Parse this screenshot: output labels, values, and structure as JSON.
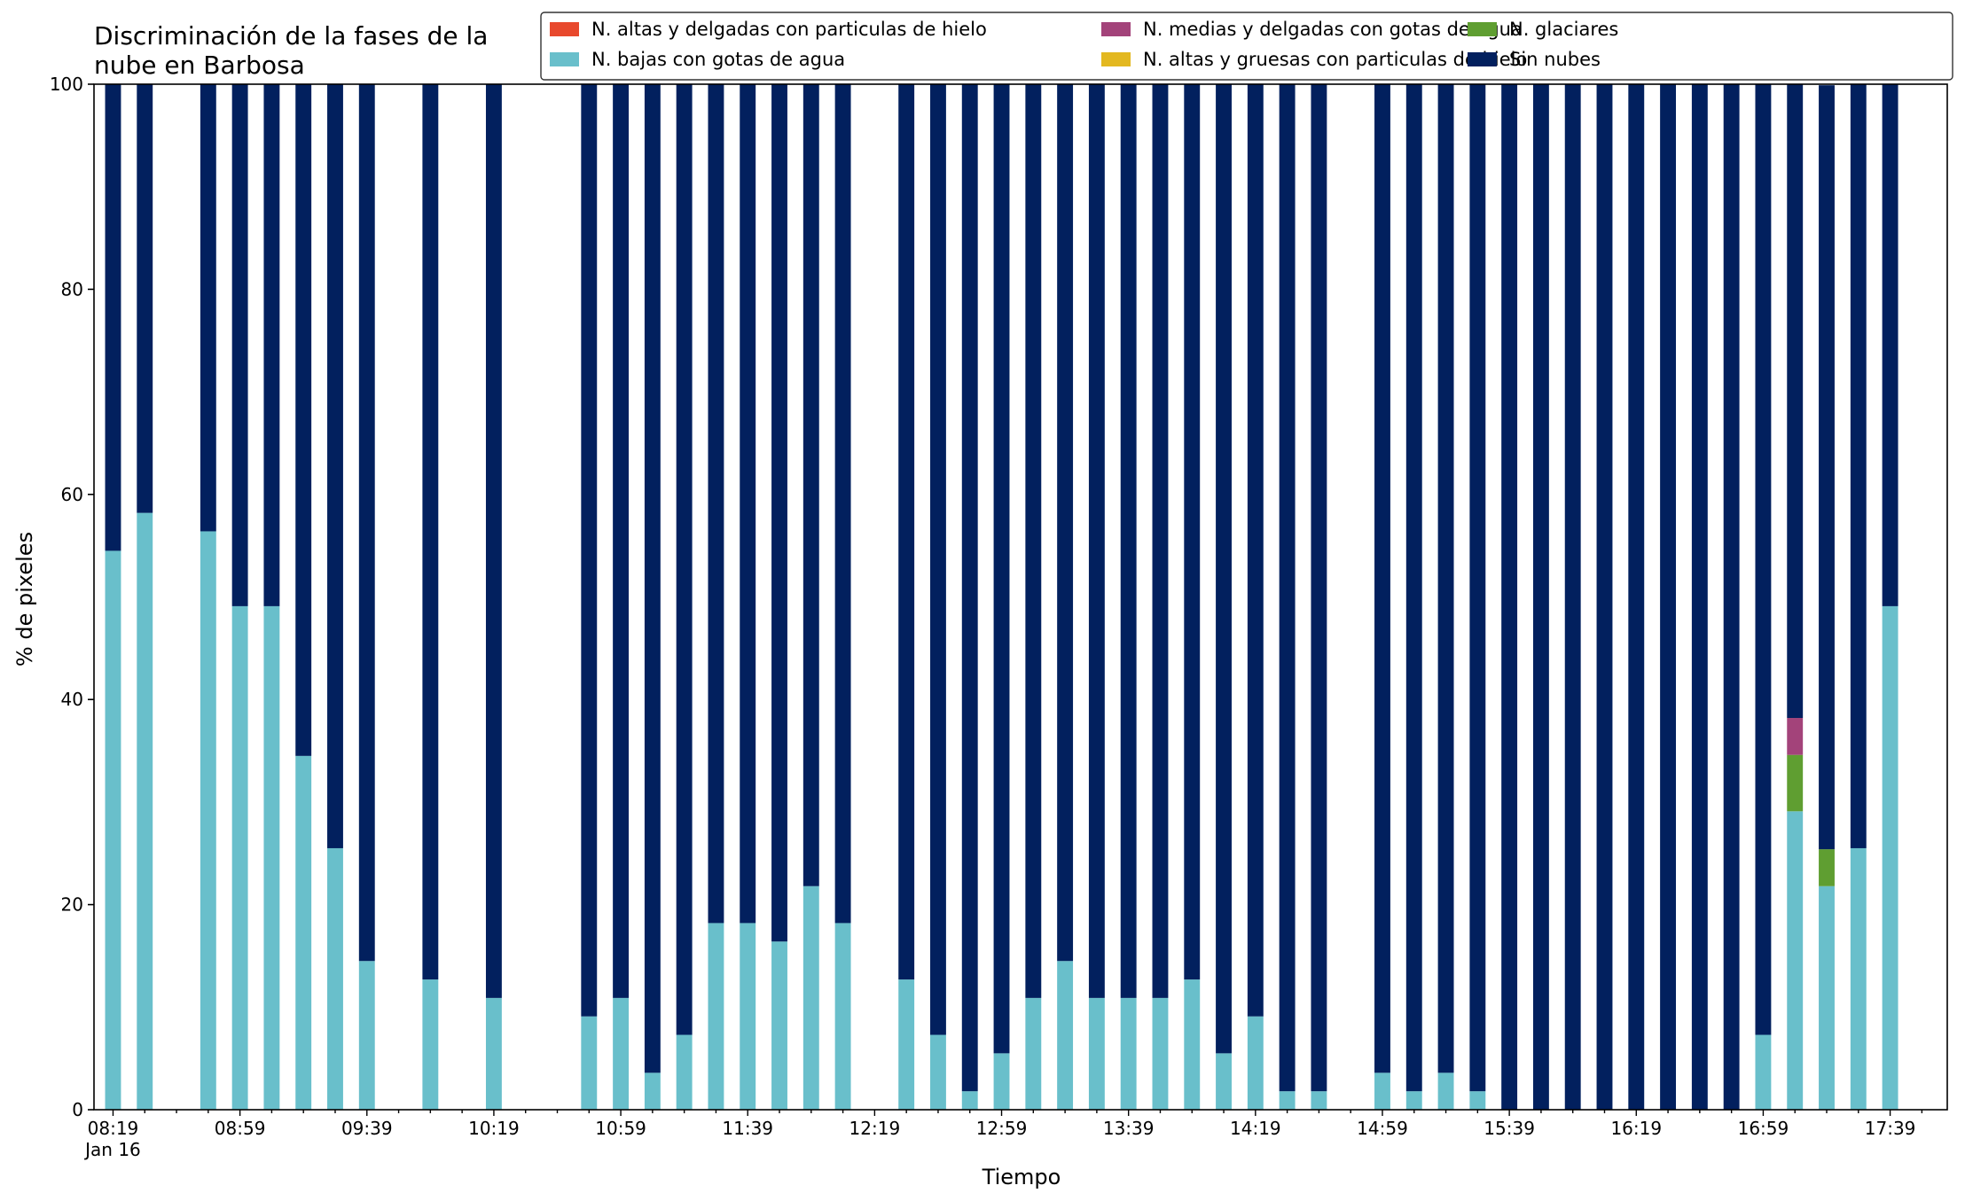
{
  "chart_data": {
    "type": "bar",
    "stacked": true,
    "title_lines": [
      "Discriminación de la fases de la",
      "nube en Barbosa"
    ],
    "xlabel": "Tiempo",
    "ylabel": "% de pixeles",
    "ylim": [
      0,
      100
    ],
    "yticks": [
      0,
      20,
      40,
      60,
      80,
      100
    ],
    "xlim": [
      "08:13",
      "17:57"
    ],
    "date_label": "Jan 16",
    "xtick_labels": [
      "08:19",
      "08:59",
      "09:39",
      "10:19",
      "10:59",
      "11:39",
      "12:19",
      "12:59",
      "13:39",
      "14:19",
      "14:59",
      "15:39",
      "16:19",
      "16:59",
      "17:39"
    ],
    "grid": false,
    "legend_position": "top-right",
    "categories": [
      "08:19",
      "08:29",
      "08:49",
      "08:59",
      "09:09",
      "09:19",
      "09:29",
      "09:39",
      "09:59",
      "10:19",
      "10:49",
      "10:59",
      "11:09",
      "11:19",
      "11:29",
      "11:39",
      "11:49",
      "11:59",
      "12:09",
      "12:29",
      "12:39",
      "12:49",
      "12:59",
      "13:09",
      "13:19",
      "13:29",
      "13:39",
      "13:49",
      "13:59",
      "14:09",
      "14:19",
      "14:29",
      "14:39",
      "14:59",
      "15:09",
      "15:19",
      "15:29",
      "15:39",
      "15:49",
      "15:59",
      "16:09",
      "16:19",
      "16:29",
      "16:39",
      "16:49",
      "16:59",
      "17:09",
      "17:19",
      "17:29",
      "17:39"
    ],
    "series": [
      {
        "name": "N. altas y delgadas con particulas de hielo",
        "color": "#e8492d",
        "values": [
          0,
          0,
          0,
          0,
          0,
          0,
          0,
          0,
          0,
          0,
          0,
          0,
          0,
          0,
          0,
          0,
          0,
          0,
          0,
          0,
          0,
          0,
          0,
          0,
          0,
          0,
          0,
          0,
          0,
          0,
          0,
          0,
          0,
          0,
          0,
          0,
          0,
          0,
          0,
          0,
          0,
          0,
          0,
          0,
          0,
          0,
          0,
          0,
          0,
          0
        ]
      },
      {
        "name": "N. altas y gruesas con particulas de hielo",
        "color": "#e3b820",
        "values": [
          0,
          0,
          0,
          0,
          0,
          0,
          0,
          0,
          0,
          0,
          0,
          0,
          0,
          0,
          0,
          0,
          0,
          0,
          0,
          0,
          0,
          0,
          0,
          0,
          0,
          0,
          0,
          0,
          0,
          0,
          0,
          0,
          0,
          0,
          0,
          0,
          0,
          0,
          0,
          0,
          0,
          0,
          0,
          0,
          0,
          0,
          0,
          0,
          0,
          0
        ]
      },
      {
        "name": "N. bajas con gotas de agua",
        "color": "#69bfcb",
        "values": [
          54.5,
          58.2,
          56.4,
          49.1,
          49.1,
          34.5,
          25.5,
          14.5,
          12.7,
          10.9,
          9.1,
          10.9,
          3.6,
          7.3,
          18.2,
          18.2,
          16.4,
          21.8,
          18.2,
          12.7,
          7.3,
          1.8,
          5.5,
          10.9,
          14.5,
          10.9,
          10.9,
          10.9,
          12.7,
          5.5,
          9.1,
          1.8,
          1.8,
          3.6,
          1.8,
          3.6,
          1.8,
          0,
          0,
          0,
          0,
          0,
          0,
          0,
          0,
          7.3,
          29.1,
          21.8,
          25.5,
          49.1
        ]
      },
      {
        "name": "N. glaciares",
        "color": "#5f9e31",
        "values": [
          0,
          0,
          0,
          0,
          0,
          0,
          0,
          0,
          0,
          0,
          0,
          0,
          0,
          0,
          0,
          0,
          0,
          0,
          0,
          0,
          0,
          0,
          0,
          0,
          0,
          0,
          0,
          0,
          0,
          0,
          0,
          0,
          0,
          0,
          0,
          0,
          0,
          0,
          0,
          0,
          0,
          0,
          0,
          0,
          0,
          0,
          5.5,
          3.6,
          0,
          0
        ]
      },
      {
        "name": "N. medias y delgadas con gotas de agua",
        "color": "#a3437a",
        "values": [
          0,
          0,
          0,
          0,
          0,
          0,
          0,
          0,
          0,
          0,
          0,
          0,
          0,
          0,
          0,
          0,
          0,
          0,
          0,
          0,
          0,
          0,
          0,
          0,
          0,
          0,
          0,
          0,
          0,
          0,
          0,
          0,
          0,
          0,
          0,
          0,
          0,
          0,
          0,
          0,
          0,
          0,
          0,
          0,
          0,
          0,
          3.6,
          0,
          0,
          0
        ]
      },
      {
        "name": "Sin nubes",
        "color": "#02205e",
        "values": [
          45.5,
          41.8,
          43.6,
          50.9,
          50.9,
          65.5,
          74.5,
          85.5,
          87.3,
          89.1,
          90.9,
          89.1,
          96.4,
          92.7,
          81.8,
          81.8,
          83.6,
          78.2,
          81.8,
          87.3,
          92.7,
          98.2,
          94.5,
          89.1,
          85.5,
          89.1,
          89.1,
          89.1,
          87.3,
          94.5,
          90.9,
          98.2,
          98.2,
          96.4,
          98.2,
          96.4,
          98.2,
          100,
          100,
          100,
          100,
          100,
          100,
          100,
          100,
          92.7,
          61.8,
          74.5,
          74.5,
          50.9
        ]
      }
    ],
    "legend_order": [
      0,
      2,
      4,
      1,
      3,
      5
    ]
  }
}
